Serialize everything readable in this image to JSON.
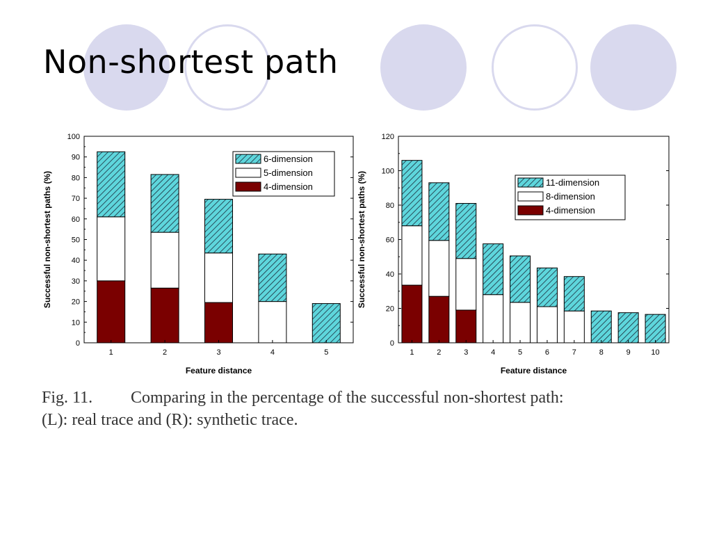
{
  "slide": {
    "title": "Non-shortest path"
  },
  "decor": {
    "circle_color": "#d9d9ee"
  },
  "colors": {
    "hatch_fill": "#5ed6dc",
    "hatch_line": "#1b2a3a",
    "dark_red": "#7a0000",
    "white": "#ffffff"
  },
  "caption": {
    "fig_label": "Fig. 11.",
    "line1": "Comparing in the percentage of the successful non-shortest path:",
    "line2": "(L): real trace and (R): synthetic trace."
  },
  "chart_data": [
    {
      "type": "bar",
      "stacked": true,
      "xlabel": "Feature distance",
      "ylabel": "Successful non-shortest paths (%)",
      "ylim": [
        0,
        100
      ],
      "yticks": [
        0,
        10,
        20,
        30,
        40,
        50,
        60,
        70,
        80,
        90,
        100
      ],
      "categories": [
        "1",
        "2",
        "3",
        "4",
        "5"
      ],
      "legend_position": "top-right",
      "series": [
        {
          "name": "4-dimension",
          "pattern": "dark_red",
          "values": [
            30,
            26.5,
            19.5,
            0,
            0
          ]
        },
        {
          "name": "5-dimension",
          "pattern": "white",
          "values": [
            31,
            27,
            24,
            20,
            0
          ]
        },
        {
          "name": "6-dimension",
          "pattern": "hatch",
          "values": [
            31.5,
            28,
            26,
            23,
            19
          ]
        }
      ],
      "legend_order": [
        "6-dimension",
        "5-dimension",
        "4-dimension"
      ]
    },
    {
      "type": "bar",
      "stacked": true,
      "xlabel": "Feature distance",
      "ylabel": "Successful non-shortest paths (%)",
      "ylim": [
        0,
        120
      ],
      "yticks": [
        0,
        20,
        40,
        60,
        80,
        100,
        120
      ],
      "categories": [
        "1",
        "2",
        "3",
        "4",
        "5",
        "6",
        "7",
        "8",
        "9",
        "10"
      ],
      "legend_position": "center-right",
      "series": [
        {
          "name": "4-dimension",
          "pattern": "dark_red",
          "values": [
            33.5,
            27,
            19,
            0,
            0,
            0,
            0,
            0,
            0,
            0
          ]
        },
        {
          "name": "8-dimension",
          "pattern": "white",
          "values": [
            34.5,
            32.5,
            30,
            28,
            23.5,
            21,
            18.5,
            0,
            0,
            0
          ]
        },
        {
          "name": "11-dimension",
          "pattern": "hatch",
          "values": [
            38,
            33.5,
            32,
            29.5,
            27,
            22.5,
            20,
            18.5,
            17.5,
            16.5
          ]
        }
      ],
      "legend_order": [
        "11-dimension",
        "8-dimension",
        "4-dimension"
      ]
    }
  ]
}
